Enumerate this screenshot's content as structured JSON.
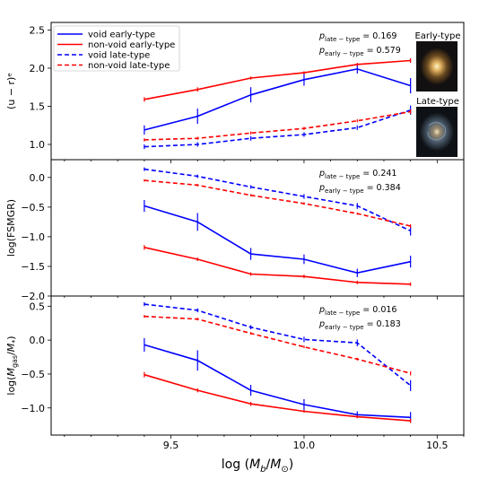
{
  "chart_data": [
    {
      "type": "line",
      "panel": "top",
      "ylabel": "(u − r)ᵉ",
      "ylim": [
        0.8,
        2.6
      ],
      "yticks": [
        1.0,
        1.5,
        2.0,
        2.5
      ],
      "ytick_labels": [
        "1.0",
        "1.5",
        "2.0",
        "2.5"
      ],
      "x": [
        9.4,
        9.6,
        9.8,
        10.0,
        10.2,
        10.4
      ],
      "series": [
        {
          "name": "void early-type",
          "color": "#0000ff",
          "dash": "solid",
          "values": [
            1.19,
            1.37,
            1.65,
            1.85,
            1.99,
            1.77
          ],
          "err": [
            0.06,
            0.1,
            0.1,
            0.08,
            0.06,
            0.1
          ]
        },
        {
          "name": "non-void early-type",
          "color": "#ff0000",
          "dash": "solid",
          "values": [
            1.59,
            1.72,
            1.87,
            1.94,
            2.05,
            2.1
          ],
          "err": [
            0.03,
            0.03,
            0.02,
            0.02,
            0.02,
            0.03
          ]
        },
        {
          "name": "void late-type",
          "color": "#0000ff",
          "dash": "dashed",
          "values": [
            0.97,
            1.0,
            1.08,
            1.13,
            1.22,
            1.45
          ],
          "err": [
            0.03,
            0.03,
            0.03,
            0.03,
            0.03,
            0.06
          ]
        },
        {
          "name": "non-void late-type",
          "color": "#ff0000",
          "dash": "dashed",
          "values": [
            1.06,
            1.08,
            1.15,
            1.21,
            1.31,
            1.43
          ],
          "err": [
            0.02,
            0.02,
            0.02,
            0.02,
            0.02,
            0.03
          ]
        }
      ],
      "legend_position": "top-left",
      "annotations": [
        {
          "label_base": "p",
          "label_sub": "late − type",
          "value": "= 0.169"
        },
        {
          "label_base": "p",
          "label_sub": "early − type",
          "value": "= 0.579"
        }
      ],
      "thumbnails": [
        {
          "caption": "Early-type",
          "kind": "elliptical-galaxy"
        },
        {
          "caption": "Late-type",
          "kind": "spiral-galaxy"
        }
      ]
    },
    {
      "type": "line",
      "panel": "middle",
      "ylabel": "log(FSMGR)",
      "ylim": [
        -2.0,
        0.3
      ],
      "yticks": [
        -2.0,
        -1.5,
        -1.0,
        -0.5,
        0.0
      ],
      "ytick_labels": [
        "−2.0",
        "−1.5",
        "−1.0",
        "−0.5",
        "0.0"
      ],
      "x": [
        9.4,
        9.6,
        9.8,
        10.0,
        10.2,
        10.4
      ],
      "series": [
        {
          "name": "void early-type",
          "color": "#0000ff",
          "dash": "solid",
          "values": [
            -0.48,
            -0.75,
            -1.29,
            -1.38,
            -1.61,
            -1.42
          ],
          "err": [
            0.1,
            0.15,
            0.1,
            0.08,
            0.07,
            0.1
          ]
        },
        {
          "name": "non-void early-type",
          "color": "#ff0000",
          "dash": "solid",
          "values": [
            -1.18,
            -1.38,
            -1.63,
            -1.67,
            -1.77,
            -1.8
          ],
          "err": [
            0.04,
            0.03,
            0.03,
            0.03,
            0.03,
            0.03
          ]
        },
        {
          "name": "void late-type",
          "color": "#0000ff",
          "dash": "dashed",
          "values": [
            0.14,
            0.02,
            -0.16,
            -0.32,
            -0.48,
            -0.9
          ],
          "err": [
            0.03,
            0.03,
            0.03,
            0.04,
            0.05,
            0.08
          ]
        },
        {
          "name": "non-void late-type",
          "color": "#ff0000",
          "dash": "dashed",
          "values": [
            -0.05,
            -0.13,
            -0.3,
            -0.44,
            -0.61,
            -0.82
          ],
          "err": [
            0.02,
            0.02,
            0.02,
            0.02,
            0.02,
            0.03
          ]
        }
      ],
      "annotations": [
        {
          "label_base": "p",
          "label_sub": "late − type",
          "value": "= 0.241"
        },
        {
          "label_base": "p",
          "label_sub": "early − type",
          "value": "= 0.384"
        }
      ]
    },
    {
      "type": "line",
      "panel": "bottom",
      "ylabel": "log(M_gas/M_*)",
      "ylim": [
        -1.4,
        0.65
      ],
      "yticks": [
        -1.0,
        -0.5,
        0.0,
        0.5
      ],
      "ytick_labels": [
        "−1.0",
        "−0.5",
        "0.0",
        "0.5"
      ],
      "x": [
        9.4,
        9.6,
        9.8,
        10.0,
        10.2,
        10.4
      ],
      "series": [
        {
          "name": "void early-type",
          "color": "#0000ff",
          "dash": "solid",
          "values": [
            -0.07,
            -0.3,
            -0.74,
            -0.95,
            -1.1,
            -1.14
          ],
          "err": [
            0.1,
            0.15,
            0.08,
            0.08,
            0.05,
            0.08
          ]
        },
        {
          "name": "non-void early-type",
          "color": "#ff0000",
          "dash": "solid",
          "values": [
            -0.51,
            -0.74,
            -0.94,
            -1.05,
            -1.13,
            -1.19
          ],
          "err": [
            0.04,
            0.03,
            0.03,
            0.02,
            0.02,
            0.03
          ]
        },
        {
          "name": "void late-type",
          "color": "#0000ff",
          "dash": "dashed",
          "values": [
            0.53,
            0.44,
            0.19,
            0.01,
            -0.04,
            -0.67
          ],
          "err": [
            0.03,
            0.03,
            0.03,
            0.04,
            0.05,
            0.08
          ]
        },
        {
          "name": "non-void late-type",
          "color": "#ff0000",
          "dash": "dashed",
          "values": [
            0.35,
            0.31,
            0.1,
            -0.1,
            -0.28,
            -0.49
          ],
          "err": [
            0.02,
            0.02,
            0.02,
            0.02,
            0.02,
            0.03
          ]
        }
      ],
      "annotations": [
        {
          "label_base": "p",
          "label_sub": "late − type",
          "value": "= 0.016"
        },
        {
          "label_base": "p",
          "label_sub": "early − type",
          "value": "= 0.183"
        }
      ]
    }
  ],
  "shared_x": {
    "xlabel": "log (M_b/M_⊙)",
    "xlim": [
      9.05,
      10.6
    ],
    "xticks": [
      9.5,
      10.0,
      10.5
    ],
    "xtick_labels": [
      "9.5",
      "10.0",
      "10.5"
    ],
    "minor_step": 0.1
  }
}
